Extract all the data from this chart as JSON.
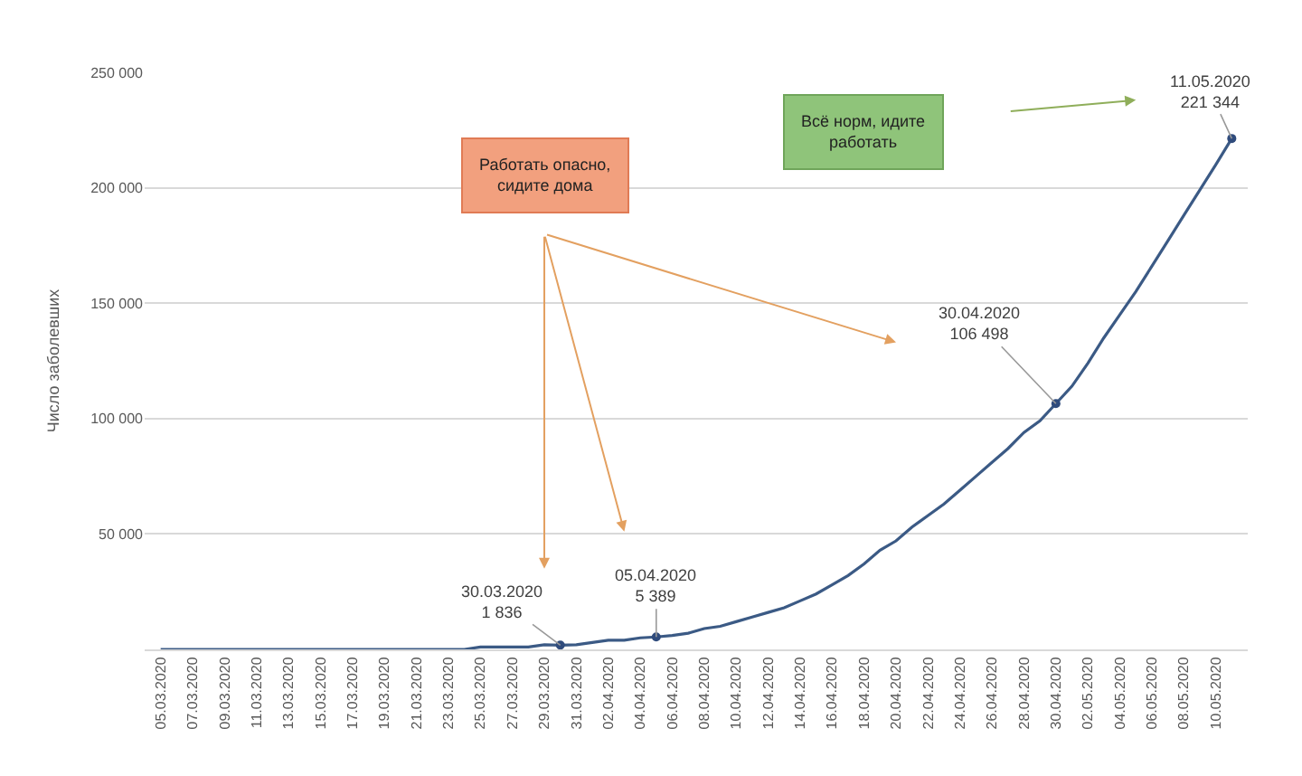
{
  "chart_data": {
    "type": "line",
    "ylabel": "Число заболевших",
    "x": [
      "2020-03-05",
      "2020-03-06",
      "2020-03-07",
      "2020-03-08",
      "2020-03-09",
      "2020-03-10",
      "2020-03-11",
      "2020-03-12",
      "2020-03-13",
      "2020-03-14",
      "2020-03-15",
      "2020-03-16",
      "2020-03-17",
      "2020-03-18",
      "2020-03-19",
      "2020-03-20",
      "2020-03-21",
      "2020-03-22",
      "2020-03-23",
      "2020-03-24",
      "2020-03-25",
      "2020-03-26",
      "2020-03-27",
      "2020-03-28",
      "2020-03-29",
      "2020-03-30",
      "2020-03-31",
      "2020-04-01",
      "2020-04-02",
      "2020-04-03",
      "2020-04-04",
      "2020-04-05",
      "2020-04-06",
      "2020-04-07",
      "2020-04-08",
      "2020-04-09",
      "2020-04-10",
      "2020-04-11",
      "2020-04-12",
      "2020-04-13",
      "2020-04-14",
      "2020-04-15",
      "2020-04-16",
      "2020-04-17",
      "2020-04-18",
      "2020-04-19",
      "2020-04-20",
      "2020-04-21",
      "2020-04-22",
      "2020-04-23",
      "2020-04-24",
      "2020-04-25",
      "2020-04-26",
      "2020-04-27",
      "2020-04-28",
      "2020-04-29",
      "2020-04-30",
      "2020-05-01",
      "2020-05-02",
      "2020-05-03",
      "2020-05-04",
      "2020-05-05",
      "2020-05-06",
      "2020-05-07",
      "2020-05-08",
      "2020-05-09",
      "2020-05-10",
      "2020-05-11"
    ],
    "series": [
      {
        "color": "#3b5a85",
        "marker": "none",
        "line_style": "solid",
        "values": [
          0,
          0,
          0,
          0,
          0,
          0,
          0,
          0,
          0,
          0,
          0,
          0,
          0,
          0,
          0,
          0,
          0,
          0,
          0,
          0,
          1000,
          1000,
          1000,
          1000,
          2000,
          1836,
          2000,
          3000,
          4000,
          4000,
          5000,
          5389,
          6000,
          7000,
          9000,
          10000,
          12000,
          14000,
          16000,
          18000,
          21000,
          24000,
          28000,
          32000,
          37000,
          43000,
          47000,
          53000,
          58000,
          63000,
          69000,
          75000,
          81000,
          87000,
          94000,
          99000,
          106498,
          114000,
          124000,
          135000,
          145000,
          155000,
          166000,
          177000,
          188000,
          199000,
          210000,
          221344
        ]
      },
      {
        "type": "scatter",
        "color": "#2f4b7c",
        "marker": "circle",
        "x": [
          "2020-03-30",
          "2020-04-05",
          "2020-04-30",
          "2020-05-11"
        ],
        "values": [
          1836,
          5389,
          106498,
          221344
        ]
      }
    ],
    "xlim": [
      "2020-03-04",
      "2020-05-12"
    ],
    "xticks": [
      {
        "value": "2020-03-05",
        "label": "05.03.2020"
      },
      {
        "value": "2020-03-07",
        "label": "07.03.2020"
      },
      {
        "value": "2020-03-09",
        "label": "09.03.2020"
      },
      {
        "value": "2020-03-11",
        "label": "11.03.2020"
      },
      {
        "value": "2020-03-13",
        "label": "13.03.2020"
      },
      {
        "value": "2020-03-15",
        "label": "15.03.2020"
      },
      {
        "value": "2020-03-17",
        "label": "17.03.2020"
      },
      {
        "value": "2020-03-19",
        "label": "19.03.2020"
      },
      {
        "value": "2020-03-21",
        "label": "21.03.2020"
      },
      {
        "value": "2020-03-23",
        "label": "23.03.2020"
      },
      {
        "value": "2020-03-25",
        "label": "25.03.2020"
      },
      {
        "value": "2020-03-27",
        "label": "27.03.2020"
      },
      {
        "value": "2020-03-29",
        "label": "29.03.2020"
      },
      {
        "value": "2020-03-31",
        "label": "31.03.2020"
      },
      {
        "value": "2020-04-02",
        "label": "02.04.2020"
      },
      {
        "value": "2020-04-04",
        "label": "04.04.2020"
      },
      {
        "value": "2020-04-06",
        "label": "06.04.2020"
      },
      {
        "value": "2020-04-08",
        "label": "08.04.2020"
      },
      {
        "value": "2020-04-10",
        "label": "10.04.2020"
      },
      {
        "value": "2020-04-12",
        "label": "12.04.2020"
      },
      {
        "value": "2020-04-14",
        "label": "14.04.2020"
      },
      {
        "value": "2020-04-16",
        "label": "16.04.2020"
      },
      {
        "value": "2020-04-18",
        "label": "18.04.2020"
      },
      {
        "value": "2020-04-20",
        "label": "20.04.2020"
      },
      {
        "value": "2020-04-22",
        "label": "22.04.2020"
      },
      {
        "value": "2020-04-24",
        "label": "24.04.2020"
      },
      {
        "value": "2020-04-26",
        "label": "26.04.2020"
      },
      {
        "value": "2020-04-28",
        "label": "28.04.2020"
      },
      {
        "value": "2020-04-30",
        "label": "30.04.2020"
      },
      {
        "value": "2020-05-02",
        "label": "02.05.2020"
      },
      {
        "value": "2020-05-04",
        "label": "04.05.2020"
      },
      {
        "value": "2020-05-06",
        "label": "06.05.2020"
      },
      {
        "value": "2020-05-08",
        "label": "08.05.2020"
      },
      {
        "value": "2020-05-10",
        "label": "10.05.2020"
      }
    ],
    "ylim": [
      0,
      250000
    ],
    "yticks": [
      {
        "value": 0,
        "label": null
      },
      {
        "value": 50000,
        "label": "50 000"
      },
      {
        "value": 100000,
        "label": "100 000"
      },
      {
        "value": 150000,
        "label": "150 000"
      },
      {
        "value": 200000,
        "label": "200 000"
      },
      {
        "value": 250000,
        "label": "250 000"
      }
    ],
    "grid": "y",
    "annotations": [
      {
        "text": "30.03.2020\n1 836",
        "x": "2020-03-30",
        "y": 1836
      },
      {
        "text": "05.04.2020\n5 389",
        "x": "2020-04-05",
        "y": 5389
      },
      {
        "text": "30.04.2020\n106 498",
        "x": "2020-04-30",
        "y": 106498
      },
      {
        "text": "11.05.2020\n221 344",
        "x": "2020-05-11",
        "y": 221344
      },
      "Работать опасно,\nсидите дома",
      "Всё норм, идите\nработать"
    ]
  }
}
